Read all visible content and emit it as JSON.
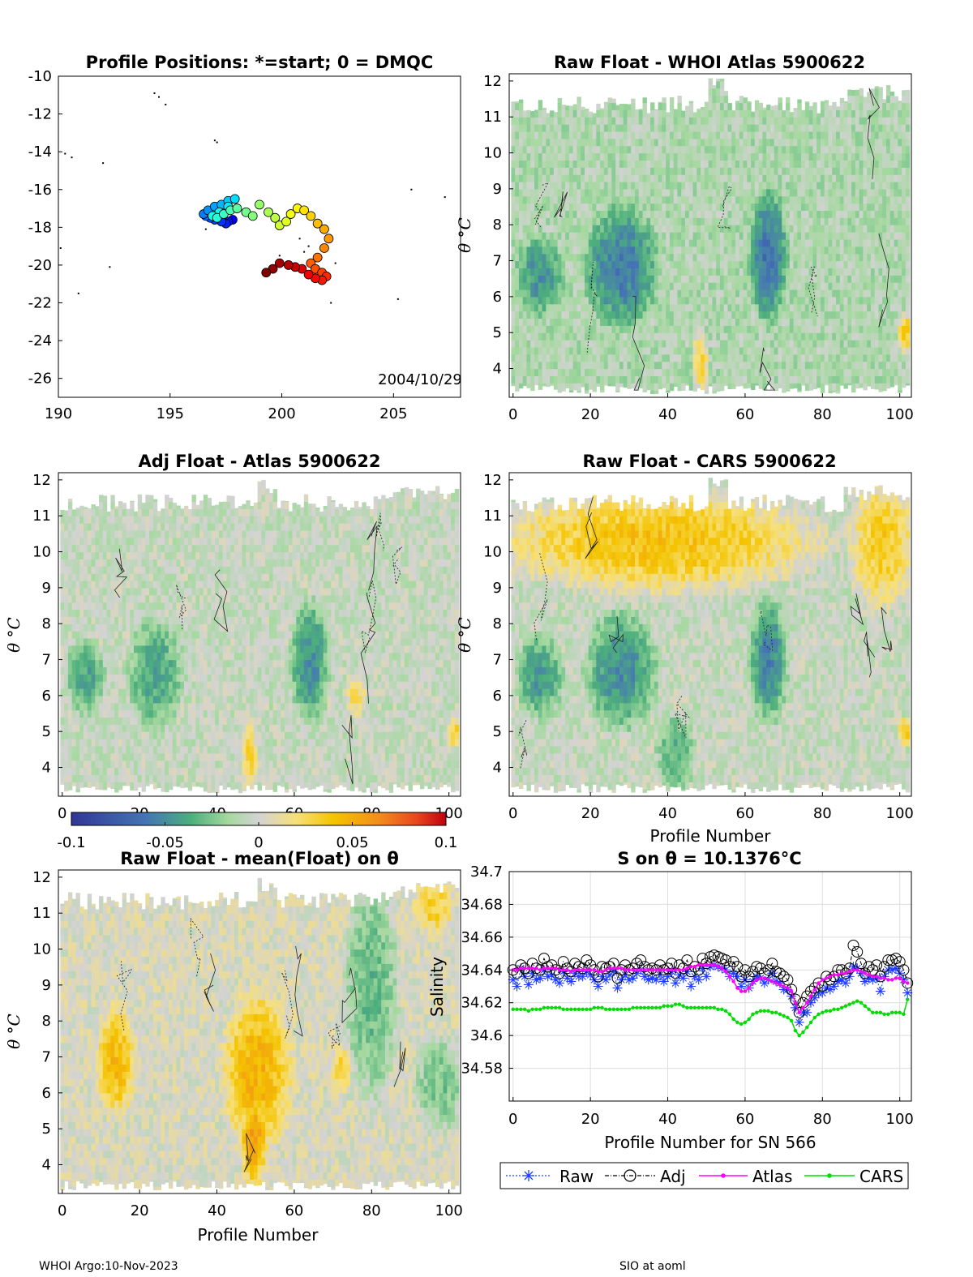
{
  "colors": {
    "axis": "#000000",
    "grid": "#dddddd",
    "raw": "#1f3fff",
    "adj": "#000000",
    "atlas": "#ff00ff",
    "cars": "#00dd00",
    "anomaly_neutral": "#d3d3d3",
    "anomaly_negative": "#7cc97c",
    "anomaly_positive": "#f4c400"
  },
  "footer": {
    "left": "WHOI Argo:10-Nov-2023",
    "right": "SIO at aoml"
  },
  "chart_data": [
    {
      "id": "positions",
      "type": "scatter",
      "title": "Profile Positions: *=start; 0 = DMQC",
      "date_label": "2004/10/29",
      "xlim": [
        190,
        208
      ],
      "ylim": [
        -27,
        -10
      ],
      "xticks": [
        190,
        195,
        200,
        205
      ],
      "yticks": [
        -10,
        -12,
        -14,
        -16,
        -18,
        -20,
        -22,
        -24,
        -26
      ],
      "track": [
        [
          197.8,
          -17.6
        ],
        [
          197.6,
          -17.7
        ],
        [
          197.5,
          -17.8
        ],
        [
          197.3,
          -17.7
        ],
        [
          197.0,
          -17.6
        ],
        [
          196.8,
          -17.5
        ],
        [
          196.6,
          -17.4
        ],
        [
          196.5,
          -17.3
        ],
        [
          196.7,
          -17.1
        ],
        [
          197.0,
          -16.9
        ],
        [
          197.3,
          -16.8
        ],
        [
          197.6,
          -16.6
        ],
        [
          197.9,
          -16.5
        ],
        [
          197.6,
          -16.9
        ],
        [
          197.2,
          -17.2
        ],
        [
          196.9,
          -17.4
        ],
        [
          197.1,
          -17.5
        ],
        [
          197.4,
          -17.3
        ],
        [
          197.7,
          -17.1
        ],
        [
          198.0,
          -17.0
        ],
        [
          198.4,
          -17.2
        ],
        [
          198.7,
          -17.4
        ],
        [
          199.0,
          -16.8
        ],
        [
          199.4,
          -17.2
        ],
        [
          199.7,
          -17.5
        ],
        [
          199.9,
          -17.9
        ],
        [
          200.2,
          -17.7
        ],
        [
          200.4,
          -17.3
        ],
        [
          200.7,
          -17.0
        ],
        [
          201.0,
          -17.1
        ],
        [
          201.3,
          -17.4
        ],
        [
          201.6,
          -17.8
        ],
        [
          201.9,
          -18.1
        ],
        [
          202.1,
          -18.6
        ],
        [
          201.9,
          -19.1
        ],
        [
          201.6,
          -19.6
        ],
        [
          201.3,
          -19.9
        ],
        [
          201.5,
          -20.2
        ],
        [
          201.8,
          -20.4
        ],
        [
          202.0,
          -20.6
        ],
        [
          201.8,
          -20.8
        ],
        [
          201.5,
          -20.7
        ],
        [
          201.2,
          -20.5
        ],
        [
          200.9,
          -20.2
        ],
        [
          200.6,
          -20.1
        ],
        [
          200.3,
          -20.0
        ],
        [
          199.9,
          -19.9
        ],
        [
          199.6,
          -20.2
        ],
        [
          199.3,
          -20.4
        ]
      ],
      "islands": [
        [
          194.3,
          -10.9
        ],
        [
          194.5,
          -11.1
        ],
        [
          194.8,
          -11.5
        ],
        [
          197.0,
          -13.4
        ],
        [
          197.1,
          -13.5
        ],
        [
          190.3,
          -14.1
        ],
        [
          190.6,
          -14.3
        ],
        [
          192.0,
          -14.6
        ],
        [
          192.3,
          -20.1
        ],
        [
          190.1,
          -19.1
        ],
        [
          190.9,
          -21.5
        ],
        [
          205.2,
          -21.8
        ],
        [
          202.2,
          -22.0
        ],
        [
          205.8,
          -16.0
        ],
        [
          207.3,
          -16.4
        ],
        [
          196.6,
          -18.1
        ],
        [
          199.9,
          -19.5
        ],
        [
          201.0,
          -19.3
        ],
        [
          201.6,
          -19.8
        ],
        [
          202.4,
          -19.9
        ],
        [
          200.8,
          -18.6
        ],
        [
          201.2,
          -19.0
        ]
      ]
    },
    {
      "id": "whoi",
      "type": "heatmap",
      "title": "Raw Float - WHOI Atlas  5900622",
      "xlabel": "",
      "ylabel": "θ °C",
      "xlim": [
        -1,
        103
      ],
      "ylim": [
        3.2,
        12.2
      ],
      "xticks": [
        0,
        20,
        40,
        60,
        80,
        100
      ],
      "yticks": [
        4,
        5,
        6,
        7,
        8,
        9,
        10,
        11,
        12
      ],
      "clim": [
        -0.1,
        0.1
      ],
      "offset": -0.012,
      "seed": 11,
      "blobs": [
        [
          2,
          12,
          5.6,
          7.6,
          -0.035
        ],
        [
          20,
          36,
          5.3,
          8.4,
          -0.045
        ],
        [
          62,
          70,
          5.5,
          8.8,
          -0.05
        ],
        [
          47,
          50,
          3.4,
          5.0,
          0.04
        ],
        [
          100,
          103,
          4.5,
          5.5,
          0.05
        ]
      ]
    },
    {
      "id": "adj",
      "type": "heatmap",
      "title": "Adj Float - Atlas  5900622",
      "xlabel": "",
      "ylabel": "θ °C",
      "xlim": [
        -1,
        103
      ],
      "ylim": [
        3.2,
        12.2
      ],
      "xticks": [
        0,
        20,
        40,
        60,
        80,
        100
      ],
      "yticks": [
        4,
        5,
        6,
        7,
        8,
        9,
        10,
        11,
        12
      ],
      "clim": [
        -0.1,
        0.1
      ],
      "offset": -0.005,
      "seed": 23,
      "blobs": [
        [
          2,
          10,
          5.6,
          7.5,
          -0.035
        ],
        [
          18,
          30,
          5.2,
          8.0,
          -0.035
        ],
        [
          60,
          68,
          5.4,
          8.5,
          -0.045
        ],
        [
          47,
          50,
          3.3,
          5.2,
          0.035
        ],
        [
          74,
          78,
          5.5,
          6.6,
          0.03
        ],
        [
          100,
          103,
          4.6,
          5.4,
          0.04
        ]
      ]
    },
    {
      "id": "cars",
      "type": "heatmap",
      "title": "Raw Float - CARS  5900622",
      "xlabel": "Profile Number",
      "ylabel": "θ °C",
      "xlim": [
        -1,
        103
      ],
      "ylim": [
        3.2,
        12.2
      ],
      "xticks": [
        0,
        20,
        40,
        60,
        80,
        100
      ],
      "yticks": [
        4,
        5,
        6,
        7,
        8,
        9,
        10,
        11,
        12
      ],
      "clim": [
        -0.1,
        0.1
      ],
      "offset": -0.005,
      "seed": 37,
      "blobs": [
        [
          0,
          75,
          9.0,
          11.6,
          0.045
        ],
        [
          88,
          103,
          8.6,
          11.9,
          0.04
        ],
        [
          2,
          12,
          5.5,
          7.6,
          -0.04
        ],
        [
          20,
          36,
          5.2,
          8.2,
          -0.045
        ],
        [
          62,
          70,
          5.4,
          8.6,
          -0.05
        ],
        [
          38,
          46,
          3.4,
          5.4,
          -0.03
        ],
        [
          100,
          103,
          4.6,
          5.4,
          0.04
        ]
      ]
    },
    {
      "id": "mean",
      "type": "heatmap",
      "title": "Raw Float - mean(Float) on θ",
      "xlabel": "Profile Number",
      "ylabel": "θ °C",
      "xlim": [
        -1,
        103
      ],
      "ylim": [
        3.2,
        12.2
      ],
      "xticks": [
        0,
        20,
        40,
        60,
        80,
        100
      ],
      "yticks": [
        4,
        5,
        6,
        7,
        8,
        9,
        10,
        11,
        12
      ],
      "clim": [
        -0.1,
        0.1
      ],
      "offset": 0.003,
      "seed": 53,
      "blobs": [
        [
          10,
          18,
          5.5,
          8.3,
          0.04
        ],
        [
          43,
          58,
          4.6,
          8.6,
          0.045
        ],
        [
          47,
          52,
          3.4,
          5.2,
          0.04
        ],
        [
          70,
          74,
          6.0,
          7.2,
          0.03
        ],
        [
          74,
          86,
          6.0,
          11.8,
          -0.035
        ],
        [
          92,
          103,
          5.0,
          7.5,
          -0.03
        ],
        [
          92,
          100,
          10.5,
          11.9,
          0.03
        ]
      ]
    },
    {
      "id": "salinity",
      "type": "line",
      "title": "S on θ = 10.1376°C",
      "xlabel": "Profile Number for SN 566",
      "ylabel": "Salinity",
      "xlim": [
        -1,
        103
      ],
      "ylim": [
        34.56,
        34.7
      ],
      "xticks": [
        0,
        20,
        40,
        60,
        80,
        100
      ],
      "yticks": [
        34.58,
        34.6,
        34.62,
        34.64,
        34.66,
        34.68,
        34.7
      ],
      "ytick_labels": [
        "34.58",
        "34.6",
        "34.62",
        "34.64",
        "34.66",
        "34.68",
        "34.7"
      ],
      "legend": [
        "Raw",
        "Adj",
        "Atlas",
        "CARS"
      ],
      "series": [
        {
          "name": "Raw",
          "values": [
            34.634,
            34.63,
            34.641,
            34.636,
            34.631,
            34.638,
            34.634,
            34.635,
            34.64,
            34.636,
            34.637,
            34.634,
            34.632,
            34.639,
            34.635,
            34.633,
            34.638,
            34.636,
            34.636,
            34.639,
            34.637,
            34.634,
            34.63,
            34.636,
            34.634,
            34.637,
            34.639,
            34.629,
            34.634,
            34.637,
            34.634,
            34.635,
            34.638,
            34.64,
            34.636,
            34.634,
            34.635,
            34.634,
            34.637,
            34.633,
            34.636,
            34.639,
            34.632,
            34.637,
            34.635,
            34.639,
            34.63,
            34.636,
            34.634,
            34.641,
            34.636,
            34.642,
            34.643,
            34.642,
            34.641,
            34.64,
            34.636,
            34.638,
            34.636,
            34.63,
            34.634,
            34.629,
            34.633,
            34.636,
            34.635,
            34.632,
            34.634,
            34.638,
            34.633,
            34.632,
            34.628,
            34.628,
            34.624,
            34.617,
            34.608,
            34.614,
            34.614,
            34.62,
            34.623,
            34.626,
            34.626,
            34.629,
            34.628,
            34.63,
            34.633,
            34.634,
            34.632,
            34.636,
            34.642,
            34.641,
            34.638,
            34.633,
            34.635,
            34.634,
            34.635,
            34.627,
            34.636,
            34.64,
            34.64,
            34.641,
            34.638,
            34.634,
            34.626
          ]
        },
        {
          "name": "Adj",
          "values": [
            34.64,
            34.638,
            34.643,
            34.641,
            34.638,
            34.644,
            34.641,
            34.64,
            34.647,
            34.642,
            34.643,
            34.64,
            34.638,
            34.645,
            34.641,
            34.639,
            34.644,
            34.642,
            34.641,
            34.646,
            34.643,
            34.64,
            34.636,
            34.642,
            34.641,
            34.642,
            34.644,
            34.635,
            34.64,
            34.643,
            34.64,
            34.641,
            34.644,
            34.646,
            34.642,
            34.64,
            34.641,
            34.64,
            34.643,
            34.64,
            34.641,
            34.644,
            34.638,
            34.643,
            34.641,
            34.646,
            34.639,
            34.642,
            34.64,
            34.647,
            34.644,
            34.648,
            34.649,
            34.648,
            34.647,
            34.646,
            34.642,
            34.645,
            34.642,
            34.636,
            34.64,
            34.636,
            34.639,
            34.642,
            34.641,
            34.638,
            34.64,
            34.644,
            34.639,
            34.638,
            34.636,
            34.634,
            34.628,
            34.622,
            34.614,
            34.62,
            34.624,
            34.627,
            34.629,
            34.632,
            34.63,
            34.636,
            34.634,
            34.636,
            34.64,
            34.64,
            34.638,
            34.641,
            34.655,
            34.651,
            34.644,
            34.638,
            34.642,
            34.64,
            34.643,
            34.636,
            34.642,
            34.646,
            34.646,
            34.647,
            34.645,
            34.64,
            34.632
          ]
        },
        {
          "name": "Atlas",
          "values": [
            34.64,
            34.64,
            34.641,
            34.641,
            34.641,
            34.641,
            34.641,
            34.64,
            34.641,
            34.641,
            34.641,
            34.641,
            34.64,
            34.64,
            34.64,
            34.639,
            34.64,
            34.64,
            34.64,
            34.64,
            34.64,
            34.64,
            34.639,
            34.639,
            34.64,
            34.641,
            34.641,
            34.641,
            34.641,
            34.64,
            34.64,
            34.64,
            34.64,
            34.64,
            34.64,
            34.64,
            34.64,
            34.64,
            34.64,
            34.64,
            34.64,
            34.64,
            34.64,
            34.64,
            34.64,
            34.641,
            34.642,
            34.642,
            34.643,
            34.643,
            34.643,
            34.643,
            34.643,
            34.642,
            34.641,
            34.639,
            34.636,
            34.633,
            34.629,
            34.627,
            34.627,
            34.629,
            34.632,
            34.634,
            34.635,
            34.635,
            34.634,
            34.633,
            34.632,
            34.631,
            34.63,
            34.629,
            34.627,
            34.62,
            34.614,
            34.617,
            34.62,
            34.624,
            34.628,
            34.632,
            34.634,
            34.635,
            34.636,
            34.637,
            34.637,
            34.638,
            34.638,
            34.639,
            34.64,
            34.64,
            34.639,
            34.638,
            34.637,
            34.636,
            34.636,
            34.635,
            34.635,
            34.634,
            34.634,
            34.635,
            34.635,
            34.633,
            34.632
          ]
        },
        {
          "name": "CARS",
          "values": [
            34.616,
            34.616,
            34.616,
            34.616,
            34.615,
            34.616,
            34.616,
            34.616,
            34.617,
            34.617,
            34.617,
            34.617,
            34.617,
            34.616,
            34.616,
            34.616,
            34.616,
            34.616,
            34.616,
            34.616,
            34.616,
            34.617,
            34.617,
            34.617,
            34.616,
            34.616,
            34.616,
            34.616,
            34.616,
            34.616,
            34.616,
            34.617,
            34.617,
            34.617,
            34.617,
            34.617,
            34.617,
            34.617,
            34.617,
            34.618,
            34.618,
            34.618,
            34.619,
            34.619,
            34.618,
            34.617,
            34.617,
            34.617,
            34.617,
            34.617,
            34.617,
            34.617,
            34.617,
            34.616,
            34.616,
            34.615,
            34.613,
            34.61,
            34.608,
            34.607,
            34.608,
            34.61,
            34.613,
            34.614,
            34.615,
            34.615,
            34.615,
            34.614,
            34.614,
            34.613,
            34.612,
            34.611,
            34.609,
            34.603,
            34.6,
            34.602,
            34.605,
            34.608,
            34.611,
            34.613,
            34.614,
            34.615,
            34.615,
            34.616,
            34.616,
            34.617,
            34.618,
            34.619,
            34.62,
            34.621,
            34.62,
            34.618,
            34.616,
            34.614,
            34.614,
            34.614,
            34.613,
            34.613,
            34.614,
            34.614,
            34.614,
            34.613,
            34.622
          ]
        }
      ]
    },
    {
      "id": "colorbar",
      "type": "heatmap",
      "title": "",
      "clim": [
        -0.1,
        0.1
      ],
      "ticks": [
        "-0.1",
        "-0.05",
        "0",
        "0.05",
        "0.1"
      ],
      "tick_values": [
        -0.1,
        -0.05,
        0,
        0.05,
        0.1
      ]
    }
  ]
}
